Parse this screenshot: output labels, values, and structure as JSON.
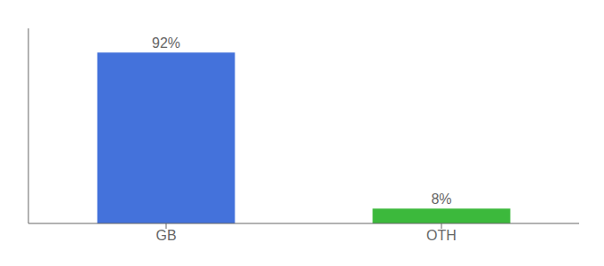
{
  "chart_data": {
    "type": "bar",
    "categories": [
      "GB",
      "OTH"
    ],
    "values": [
      92,
      8
    ],
    "value_labels": [
      "92%",
      "8%"
    ],
    "colors": [
      "#4472db",
      "#3cb93c"
    ],
    "ylim": [
      0,
      105
    ],
    "data_labels": true,
    "tick_labels": "x"
  }
}
